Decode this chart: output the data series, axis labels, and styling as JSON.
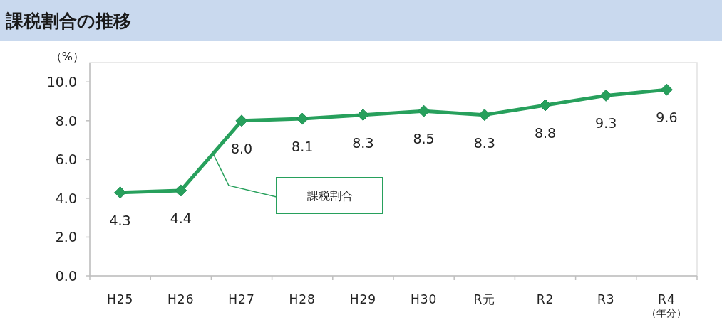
{
  "chart_data": {
    "type": "line",
    "title": "課税割合の推移",
    "ylabel": "（%）",
    "xlabel": "（年分）",
    "categories": [
      "H25",
      "H26",
      "H27",
      "H28",
      "H29",
      "H30",
      "R元",
      "R2",
      "R3",
      "R4"
    ],
    "series": [
      {
        "name": "課税割合",
        "color": "#27a05c",
        "values": [
          4.3,
          4.4,
          8.0,
          8.1,
          8.3,
          8.5,
          8.3,
          8.8,
          9.3,
          9.6
        ],
        "value_labels": [
          "4.3",
          "4.4",
          "8.0",
          "8.1",
          "8.3",
          "8.5",
          "8.3",
          "8.8",
          "9.3",
          "9.6"
        ]
      }
    ],
    "ylim": [
      0,
      11
    ],
    "yticks": [
      {
        "value": 0,
        "label": "0.0"
      },
      {
        "value": 2,
        "label": "2.0"
      },
      {
        "value": 4,
        "label": "4.0"
      },
      {
        "value": 6,
        "label": "6.0"
      },
      {
        "value": 8,
        "label": "8.0"
      },
      {
        "value": 10,
        "label": "10.0"
      }
    ],
    "marker": "diamond",
    "line_style": "solid"
  }
}
